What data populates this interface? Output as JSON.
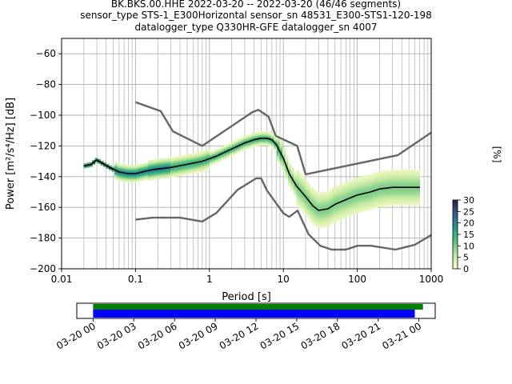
{
  "chart_data": {
    "type": "line",
    "title_lines": [
      "BK.BKS.00.HHE   2022-03-20 -- 2022-03-20  (46/46 segments)",
      "sensor_type STS-1_E300Horizontal sensor_sn 48531_E300-STS1-120-198",
      "datalogger_type Q330HR-GFE datalogger_sn 4007"
    ],
    "xlabel": "Period [s]",
    "ylabel": "Power [m²/s⁴/Hz] [dB]",
    "x_scale": "log",
    "xlim": [
      0.01,
      1000
    ],
    "ylim": [
      -200,
      -50
    ],
    "x_ticks": [
      0.01,
      0.1,
      1,
      10,
      100,
      1000
    ],
    "x_tick_labels": [
      "0.01",
      "0.1",
      "1",
      "10",
      "100",
      "1000"
    ],
    "y_ticks": [
      -200,
      -180,
      -160,
      -140,
      -120,
      -100,
      -80,
      -60
    ],
    "y_tick_labels": [
      "−200",
      "−180",
      "−160",
      "−140",
      "−120",
      "−100",
      "−80",
      "−60"
    ],
    "grid": true,
    "series": [
      {
        "role": "mean",
        "color": "#000000",
        "x": [
          0.02,
          0.025,
          0.03,
          0.035,
          0.045,
          0.06,
          0.08,
          0.1,
          0.15,
          0.2,
          0.3,
          0.5,
          0.8,
          1.2,
          2,
          3,
          4,
          5,
          6,
          7,
          8,
          10,
          12,
          15,
          20,
          25,
          30,
          40,
          50,
          70,
          100,
          150,
          200,
          300,
          400,
          500,
          700
        ],
        "y": [
          -133,
          -132,
          -129,
          -131,
          -134,
          -137,
          -138,
          -138,
          -136,
          -135,
          -134,
          -132,
          -130,
          -127,
          -122,
          -118,
          -116,
          -115,
          -115,
          -116,
          -119,
          -128,
          -138,
          -146,
          -153,
          -159,
          -162,
          -161,
          -158,
          -155,
          -152,
          -150,
          -148,
          -147,
          -147,
          -147,
          -147
        ]
      },
      {
        "role": "new-high-noise-model",
        "color": "#666666",
        "x": [
          0.1,
          0.22,
          0.32,
          0.8,
          3.8,
          4.6,
          6.3,
          7.9,
          15.4,
          20,
          354.8,
          1000
        ],
        "y": [
          -91.5,
          -97.4,
          -110.5,
          -120,
          -98,
          -96.5,
          -101,
          -113.5,
          -120,
          -138.5,
          -126,
          -111.3
        ]
      },
      {
        "role": "new-low-noise-model",
        "color": "#666666",
        "x": [
          0.1,
          0.17,
          0.4,
          0.8,
          1.24,
          2.4,
          4.3,
          5,
          6,
          10,
          12,
          15.6,
          21.9,
          31.6,
          45,
          70,
          101,
          154,
          328,
          600,
          1000
        ],
        "y": [
          -168,
          -166.7,
          -166.7,
          -169.2,
          -163.7,
          -148.6,
          -141.1,
          -141.1,
          -149,
          -163.8,
          -166.2,
          -162.1,
          -177.5,
          -185,
          -187.5,
          -187.5,
          -185,
          -185,
          -187.5,
          -184.4,
          -178
        ]
      }
    ],
    "density_colorbar": {
      "label": "[%]",
      "range": [
        0,
        30
      ],
      "ticks": [
        0,
        5,
        10,
        15,
        20,
        25,
        30
      ],
      "tick_labels": [
        "0",
        "5",
        "10",
        "15",
        "20",
        "25",
        "30"
      ]
    },
    "time_coverage": {
      "tick_labels": [
        "03-20 00",
        "03-20 03",
        "03-20 06",
        "03-20 09",
        "03-20 12",
        "03-20 15",
        "03-20 18",
        "03-20 21",
        "03-21 00"
      ],
      "range_hours": [
        -1.2,
        25.2
      ],
      "bars": [
        {
          "color": "#008000",
          "start_hour": 0,
          "end_hour": 24.3
        },
        {
          "color": "#0000ff",
          "start_hour": 0,
          "end_hour": 23.7
        }
      ]
    }
  }
}
